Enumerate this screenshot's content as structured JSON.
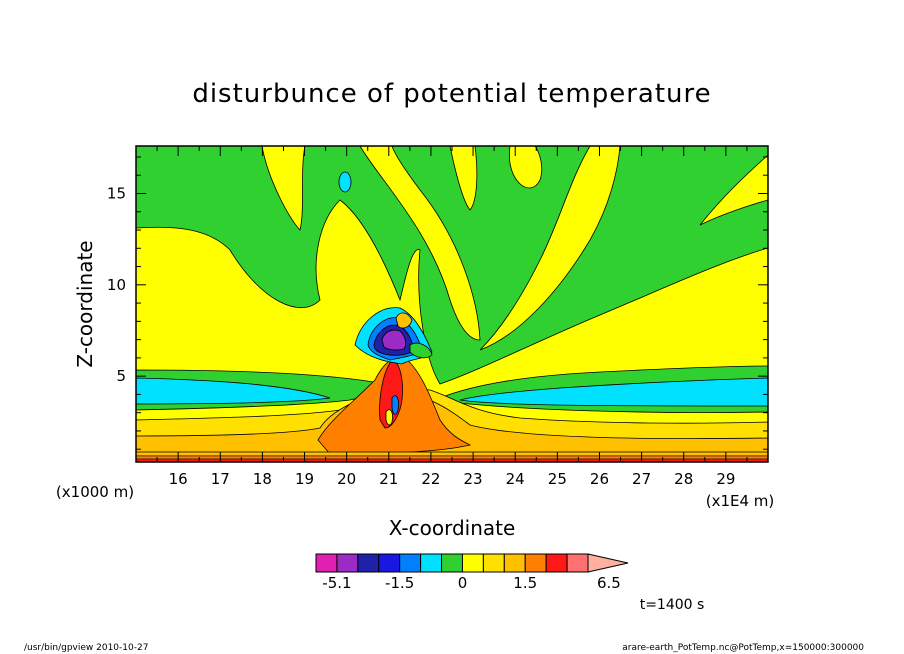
{
  "chart_data": {
    "type": "heatmap",
    "title": "disturbunce of potential temperature",
    "xlabel": "X-coordinate",
    "ylabel": "Z-coordinate",
    "x_unit": "(x1E4 m)",
    "y_unit": "(x1000 m)",
    "x_ticks": [
      16,
      17,
      18,
      19,
      20,
      21,
      22,
      23,
      24,
      25,
      26,
      27,
      28,
      29
    ],
    "y_ticks": [
      5,
      10,
      15
    ],
    "xlim": [
      15,
      30
    ],
    "ylim": [
      0.3,
      17.6
    ],
    "colorbar": {
      "levels": [
        -6.5,
        -5.1,
        -3.8,
        -2.5,
        -1.5,
        -1.0,
        -0.5,
        0,
        0.5,
        1.0,
        1.5,
        2.5,
        3.8,
        5.1,
        6.5
      ],
      "colors": [
        "#e020b0",
        "#9b2bc4",
        "#2020a8",
        "#1818e0",
        "#0080ff",
        "#00e0ff",
        "#30d030",
        "#ffff00",
        "#ffe000",
        "#ffc000",
        "#ff8000",
        "#ff1818",
        "#ff7070",
        "#ffb0a0"
      ],
      "tick_labels": [
        "-5.1",
        "-1.5",
        "0",
        "1.5",
        "6.5"
      ],
      "tick_values": [
        -5.1,
        -1.5,
        0,
        1.5,
        6.5
      ]
    }
  },
  "annotations": {
    "time": "t=1400 s",
    "footer_left": "/usr/bin/gpview   2010-10-27",
    "footer_right": "arare-earth_PotTemp.nc@PotTemp,x=150000:300000"
  },
  "colors": {
    "yellow": "#ffff00",
    "green": "#30d030",
    "cyan": "#00e0ff",
    "light_orange": "#ffe000",
    "orange": "#ffc000",
    "dark_orange": "#ff8000",
    "red": "#ff1818",
    "blue": "#0080ff",
    "dark_blue": "#1818e0",
    "navy": "#2020a8",
    "purple": "#9b2bc4",
    "magenta": "#e020b0",
    "pink": "#ff7070"
  }
}
